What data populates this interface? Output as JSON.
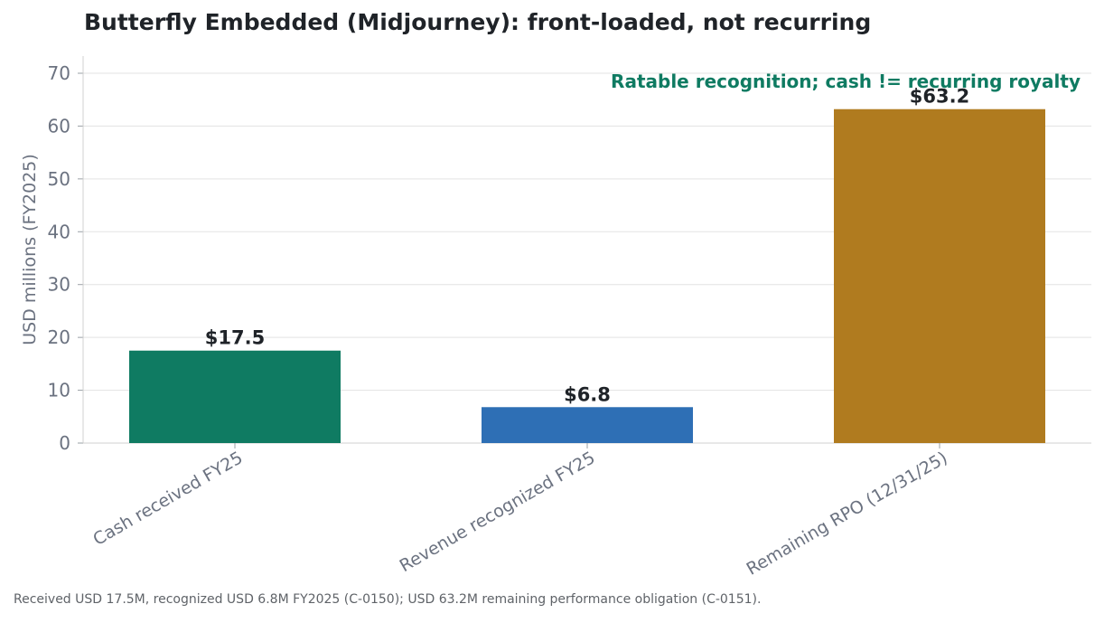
{
  "chart_data": {
    "type": "bar",
    "title": "Butterfly Embedded (Midjourney): front-loaded, not recurring",
    "ylabel": "USD millions (FY2025)",
    "xlabel": "",
    "categories": [
      "Cash received FY25",
      "Revenue recognized FY25",
      "Remaining RPO (12/31/25)"
    ],
    "values": [
      17.5,
      6.8,
      63.2
    ],
    "value_labels": [
      "$17.5",
      "$6.8",
      "$63.2"
    ],
    "colors": [
      "#0f7b62",
      "#2e6fb5",
      "#b07b1f"
    ],
    "ylim": [
      0,
      73
    ],
    "yticks": [
      0,
      10,
      20,
      30,
      40,
      50,
      60,
      70
    ],
    "grid": "horizontal",
    "annotation": "Ratable recognition; cash != recurring royalty",
    "annotation_color": "#0f7b62"
  },
  "footnote": "Received USD 17.5M, recognized USD 6.8M FY2025 (C-0150); USD 63.2M remaining performance obligation (C-0151)."
}
